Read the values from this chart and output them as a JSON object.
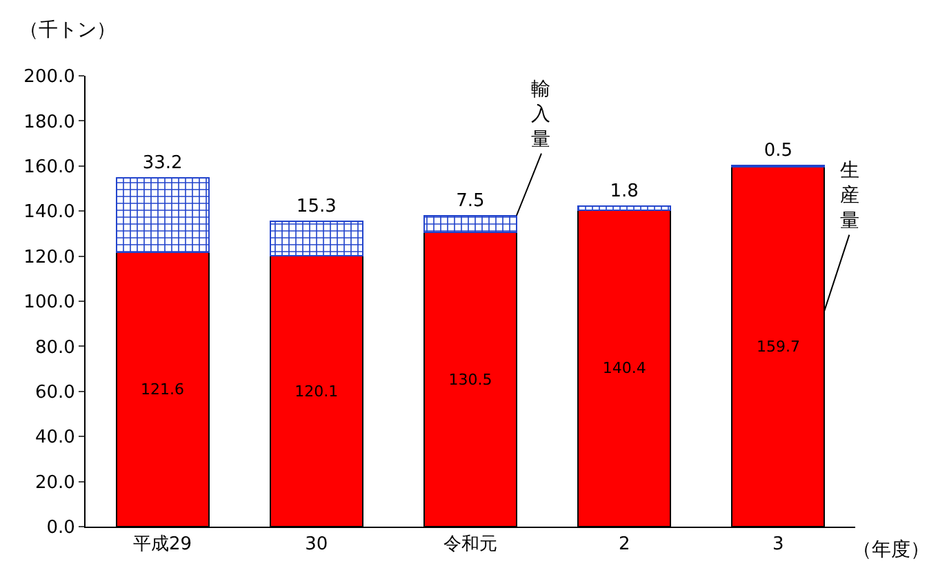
{
  "chart_data": {
    "type": "bar",
    "stacked": true,
    "ylabel": "（千トン）",
    "xlabel": "（年度）",
    "categories": [
      "平成29",
      "30",
      "令和元",
      "2",
      "3"
    ],
    "series": [
      {
        "name": "生産量",
        "color": "#ff0000",
        "values": [
          121.6,
          120.1,
          130.5,
          140.4,
          159.7
        ]
      },
      {
        "name": "輸入量",
        "color": "#2244cc",
        "values": [
          33.2,
          15.3,
          7.5,
          1.8,
          0.5
        ]
      }
    ],
    "ylim": [
      0,
      200
    ],
    "yticks": [
      {
        "value": 0,
        "label": "0.0"
      },
      {
        "value": 20,
        "label": "20.0"
      },
      {
        "value": 40,
        "label": "40.0"
      },
      {
        "value": 60,
        "label": "60.0"
      },
      {
        "value": 80,
        "label": "80.0"
      },
      {
        "value": 100,
        "label": "100.0"
      },
      {
        "value": 120,
        "label": "120.0"
      },
      {
        "value": 140,
        "label": "140.0"
      },
      {
        "value": 160,
        "label": "160.0"
      },
      {
        "value": 180,
        "label": "180.0"
      },
      {
        "value": 200,
        "label": "200.0"
      }
    ],
    "data_labels": true,
    "legend": false,
    "grid": false
  }
}
